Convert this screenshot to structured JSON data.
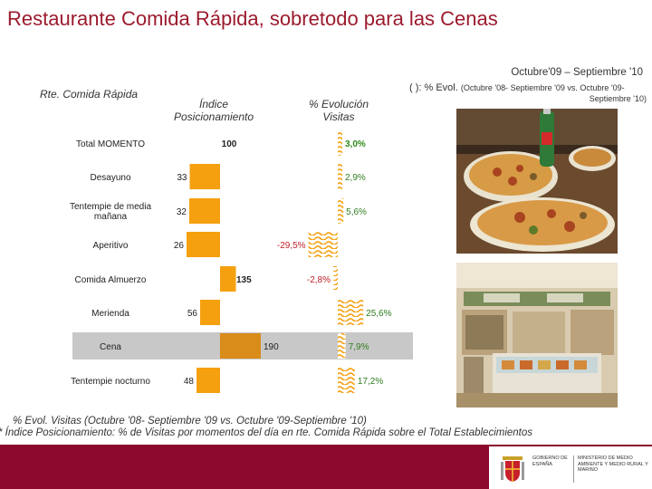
{
  "title": "Restaurante Comida Rápida, sobretodo para las Cenas",
  "period": "Octubre'09 – Septiembre '10",
  "legend": {
    "main": "( ): % Evol.",
    "detail_a": "(Octubre '08- Septiembre '09 vs. Octubre '09-",
    "detail_b": "Septiembre '10)"
  },
  "headers": {
    "segment": "Rte. Comida Rápida",
    "index": "Índice Posicionamiento",
    "evolution": "% Evolución Visitas"
  },
  "footnotes": {
    "evol": "% Evol. Visitas (Octubre '08- Septiembre '09 vs. Octubre '09-Septiembre '10)",
    "index": "* Índice Posicionamiento: % de Visitas por momentos del día en rte. Comida Rápida sobre el Total Establecimientos"
  },
  "footer": {
    "gov_label": "GOBIERNO DE ESPAÑA",
    "ministry_label": "MINISTERIO DE MEDIO AMBIENTE Y MEDIO RURAL Y MARINO"
  },
  "photos": {
    "pizza": "pizza-photo",
    "shop": "shop-interior-photo"
  },
  "colors": {
    "title": "#9b1b2e",
    "bar": "#f5a00f",
    "highlight_bar": "#d98c1a",
    "hatch": "#f5a00f",
    "positive_label": "#2f7d1f",
    "total_positive_label": "#2f8a1a",
    "negative_label": "#c0202a",
    "highlight_row": "#c8c8c8",
    "footer": "#8b0a2e"
  },
  "chart_data": {
    "type": "bar",
    "title": "",
    "baseline_index": 100,
    "categories": [
      "Total MOMENTO",
      "Desayuno",
      "Tentempie de media mañana",
      "Aperitivo",
      "Comida Almuerzo",
      "Merienda",
      "Cena",
      "Tentempie nocturno"
    ],
    "series": [
      {
        "name": "Índice Posicionamiento",
        "values": [
          100,
          33,
          32,
          26,
          135,
          56,
          190,
          48
        ]
      },
      {
        "name": "% Evolución Visitas",
        "values": [
          3.0,
          2.9,
          5.6,
          -29.5,
          -2.8,
          25.6,
          7.9,
          17.2
        ]
      }
    ],
    "index_labels": [
      "100",
      "33",
      "32",
      "26",
      "135",
      "56",
      "190",
      "48"
    ],
    "evolution_labels": [
      "3,0%",
      "2,9%",
      "5,6%",
      "-29,5%",
      "-2,8%",
      "25,6%",
      "7,9%",
      "17,2%"
    ],
    "highlighted": "Cena"
  }
}
